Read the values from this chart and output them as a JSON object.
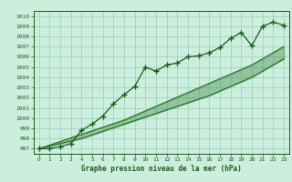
{
  "x": [
    0,
    1,
    2,
    3,
    4,
    5,
    6,
    7,
    8,
    9,
    10,
    11,
    12,
    13,
    14,
    15,
    16,
    17,
    18,
    19,
    20,
    21,
    22,
    23
  ],
  "y_main": [
    997.0,
    997.0,
    997.2,
    997.5,
    998.8,
    999.4,
    1000.2,
    1001.4,
    1002.3,
    1003.1,
    1005.0,
    1004.6,
    1005.2,
    1005.4,
    1006.0,
    1006.1,
    1006.4,
    1006.9,
    1007.8,
    1008.4,
    1007.1,
    1009.0,
    1009.4,
    1009.1
  ],
  "y_trend_low": [
    997.0,
    997.25,
    997.5,
    997.75,
    998.0,
    998.35,
    998.7,
    999.05,
    999.4,
    999.75,
    1000.1,
    1000.45,
    1000.8,
    1001.15,
    1001.5,
    1001.85,
    1002.2,
    1002.65,
    1003.1,
    1003.55,
    1004.0,
    1004.6,
    1005.2,
    1005.8
  ],
  "y_trend_high": [
    997.0,
    997.35,
    997.7,
    998.05,
    998.4,
    998.75,
    999.1,
    999.45,
    999.8,
    1000.25,
    1000.7,
    1001.15,
    1001.6,
    1002.05,
    1002.5,
    1002.95,
    1003.4,
    1003.85,
    1004.3,
    1004.75,
    1005.2,
    1005.8,
    1006.4,
    1007.0
  ],
  "line_color": "#1a5c1a",
  "trend_color": "#2d7a2d",
  "bg_color": "#cceedd",
  "grid_color": "#99ccbb",
  "title": "Graphe pression niveau de la mer (hPa)",
  "ylim": [
    996.5,
    1010.5
  ],
  "yticks": [
    997,
    998,
    999,
    1000,
    1001,
    1002,
    1003,
    1004,
    1005,
    1006,
    1007,
    1008,
    1009,
    1010
  ],
  "xlim": [
    -0.5,
    23.5
  ],
  "xticks": [
    0,
    1,
    2,
    3,
    4,
    5,
    6,
    7,
    8,
    9,
    10,
    11,
    12,
    13,
    14,
    15,
    16,
    17,
    18,
    19,
    20,
    21,
    22,
    23
  ]
}
